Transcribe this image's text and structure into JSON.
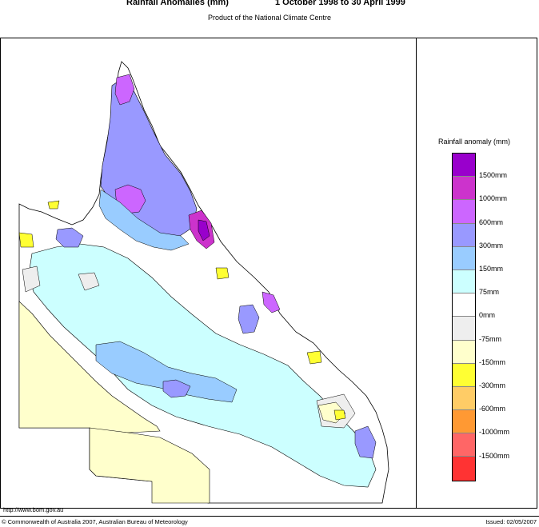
{
  "header": {
    "title": "Rainfall Anomalies (mm)",
    "period": "1 October 1998 to 30 April 1999",
    "subtitle": "Product of the National Climate Centre"
  },
  "legend": {
    "title": "Rainfall anomaly (mm)",
    "classes": [
      {
        "color": "#9900cc",
        "label": "1500mm"
      },
      {
        "color": "#cc33cc",
        "label": ""
      },
      {
        "color": "#cc66ff",
        "label": "1000mm"
      },
      {
        "color": "#9999ff",
        "label": ""
      },
      {
        "color": "#99ccff",
        "label": "600mm"
      },
      {
        "color": "#ccffff",
        "label": ""
      },
      {
        "color": "#ffffff",
        "label": "300mm"
      },
      {
        "color": "#eeeeee",
        "label": ""
      },
      {
        "color": "#ffffcc",
        "label": "150mm"
      },
      {
        "color": "#ffff33",
        "label": ""
      },
      {
        "color": "#ffcc66",
        "label": "75mm"
      },
      {
        "color": "#ff9933",
        "label": ""
      },
      {
        "color": "#ff6666",
        "label": "0mm"
      },
      {
        "color": "#ff3333",
        "label": ""
      }
    ],
    "ticks": [
      "1500mm",
      "1000mm",
      "600mm",
      "300mm",
      "150mm",
      "75mm",
      "0mm",
      "-75mm",
      "-150mm",
      "-300mm",
      "-600mm",
      "-1000mm",
      "-1500mm"
    ]
  },
  "colors": {
    "c1500": "#9900cc",
    "c1000": "#cc33cc",
    "c600": "#cc66ff",
    "c300": "#9999ff",
    "c150": "#99ccff",
    "c75": "#ccffff",
    "c0": "#ffffff",
    "cm75": "#eeeeee",
    "cm150": "#ffffcc",
    "cm300": "#ffff33"
  },
  "footer": {
    "url": "http://www.bom.gov.au",
    "copyright": "© Commonwealth of Australia 2007, Australian Bureau of Meteorology",
    "issued": "Issued: 02/05/2007"
  }
}
